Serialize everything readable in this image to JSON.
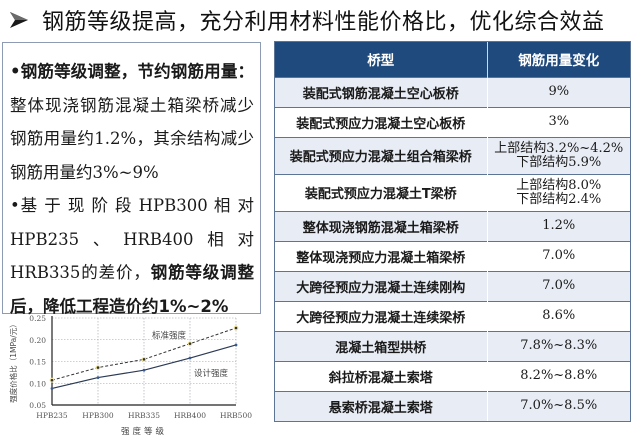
{
  "title": {
    "bullet_icon": "arrow-right-triangle-icon",
    "text": "钢筋等级提高，充分利用材料性能价格比，优化综合效益"
  },
  "left_panel": {
    "paragraph1": {
      "bullet": "•",
      "bold_lead": "钢筋等级调整，节约钢筋用量：",
      "body": "整体现浇钢筋混凝土箱梁桥减少钢筋用量约1.2%，其余结构减少钢筋用量约3%~9%"
    },
    "paragraph2": {
      "bullet": "•",
      "body_lead": "基 于 现 阶 段 HPB300 相 对 HPB235、HRB400相对HRB335的差价，",
      "bold_tail": "钢筋等级调整后，降低工程造价约1%~2%"
    }
  },
  "table": {
    "headers": [
      "桥型",
      "钢筋用量变化"
    ],
    "rows": [
      {
        "type": "装配式钢筋混凝土空心板桥",
        "change": "9%"
      },
      {
        "type": "装配式预应力混凝土空心板桥",
        "change": "3%"
      },
      {
        "type": "装配式预应力混凝土组合箱梁桥",
        "change": "上部结构3.2%~4.2%",
        "change2": "下部结构5.9%"
      },
      {
        "type": "装配式预应力混凝土T梁桥",
        "change": "上部结构8.0%",
        "change2": "下部结构2.4%"
      },
      {
        "type": "整体现浇钢筋混凝土箱梁桥",
        "change": "1.2%"
      },
      {
        "type": "整体现浇预应力混凝土箱梁桥",
        "change": "7.0%"
      },
      {
        "type": "大跨径预应力混凝土连续刚构",
        "change": "7.0%"
      },
      {
        "type": "大跨径预应力混凝土连续梁桥",
        "change": "8.6%"
      },
      {
        "type": "混凝土箱型拱桥",
        "change": "7.8%~8.3%"
      },
      {
        "type": "斜拉桥混凝土索塔",
        "change": "8.2%~8.8%"
      },
      {
        "type": "悬索桥混凝土索塔",
        "change": "7.0%~8.5%"
      }
    ],
    "colors": {
      "header_bg": "#1f4a7d",
      "row_alt_bg": "#e8ecf4",
      "border": "#5c7596"
    }
  },
  "chart_data": {
    "type": "line",
    "title": "",
    "xlabel": "强度等级",
    "ylabel": "强度价格比（1MPa/元）",
    "categories": [
      "HPB235",
      "HPB300",
      "HRB335",
      "HRB400",
      "HRB500"
    ],
    "series": [
      {
        "name": "标准强度",
        "style": "dashed",
        "values": [
          0.107,
          0.136,
          0.155,
          0.191,
          0.227
        ]
      },
      {
        "name": "设计强度",
        "style": "solid",
        "values": [
          0.088,
          0.113,
          0.13,
          0.158,
          0.188
        ]
      }
    ],
    "yticks": [
      "0.05",
      "0.10",
      "0.15",
      "0.20",
      "0.25"
    ],
    "ylim": [
      0.05,
      0.25
    ],
    "grid": true,
    "annotations": [
      {
        "text": "标准强度",
        "near_series": 0
      },
      {
        "text": "设计强度",
        "near_series": 1
      }
    ]
  }
}
